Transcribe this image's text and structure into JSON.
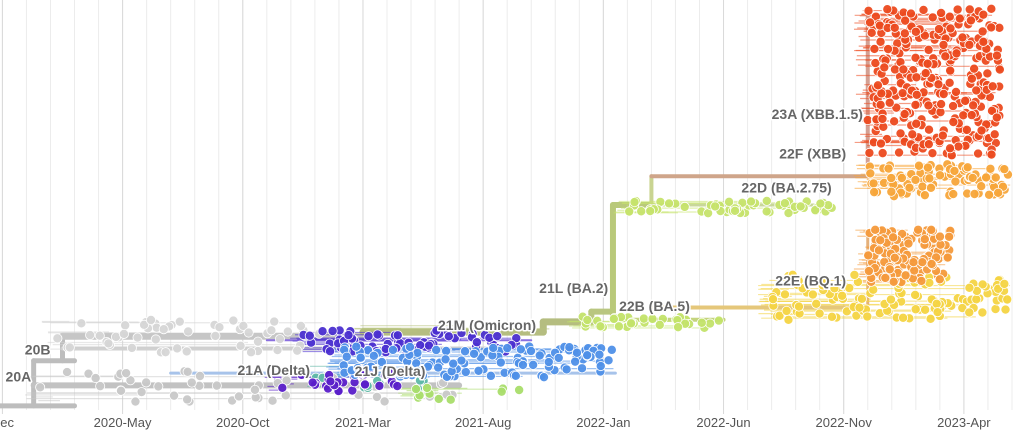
{
  "chart_data": {
    "type": "scatter",
    "title": "",
    "xlabel": "",
    "ylabel": "",
    "grid": true,
    "x_ticks": [
      "Dec",
      "2020-May",
      "2020-Oct",
      "2021-Mar",
      "2021-Aug",
      "2022-Jan",
      "2022-Jun",
      "2022-Nov",
      "2023-Apr"
    ],
    "x_tick_months": [
      -1,
      4,
      9,
      14,
      19,
      24,
      29,
      34,
      39
    ],
    "xlim_months": [
      -1.1,
      41.5
    ],
    "ylim": [
      0,
      100
    ],
    "clades": [
      {
        "label": "20A",
        "color": "#c8c8c8",
        "x_range": [
          0.5,
          18
        ],
        "y_range": [
          2,
          10
        ],
        "count": 50
      },
      {
        "label": "20B",
        "color": "#d6d6d6",
        "x_range": [
          1.2,
          12.5
        ],
        "y_range": [
          14,
          22
        ],
        "count": 55
      },
      {
        "label": "21A (Delta)",
        "color": "#5fb8a6",
        "x_range": [
          12,
          17
        ],
        "y_range": [
          5,
          11
        ],
        "count": 12
      },
      {
        "label": "",
        "color": "#4b2fd0",
        "x_range": [
          11.5,
          20.5
        ],
        "y_range": [
          14,
          19.5
        ],
        "count": 70
      },
      {
        "label": "",
        "color": "#5a1fc9",
        "x_range": [
          10.5,
          15.5
        ],
        "y_range": [
          4.5,
          9
        ],
        "count": 30
      },
      {
        "label": "21J (Delta)",
        "color": "#4f90e8",
        "x_range": [
          13,
          24.5
        ],
        "y_range": [
          8,
          15.5
        ],
        "count": 130
      },
      {
        "label": "",
        "color": "#a9dd6a",
        "x_range": [
          16,
          20.5
        ],
        "y_range": [
          2.5,
          5.5
        ],
        "count": 10
      },
      {
        "label": "21M (Omicron)",
        "color": "#b7c37d",
        "x_range": [
          14,
          22
        ],
        "y_range": [
          17,
          21
        ],
        "count": 0
      },
      {
        "label": "21L (BA.2)",
        "color": "#c3e36a",
        "x_range": [
          23,
          29
        ],
        "y_range": [
          20,
          23
        ],
        "count": 35
      },
      {
        "label": "22D (BA.2.75)",
        "color": "#c6e36b",
        "x_range": [
          25,
          33.5
        ],
        "y_range": [
          48,
          51
        ],
        "count": 60
      },
      {
        "label": "22B (BA.5)",
        "color": "#f4d443",
        "x_range": [
          31,
          41
        ],
        "y_range": [
          22,
          33
        ],
        "count": 130
      },
      {
        "label": "22E (BQ.1)",
        "color": "#f49a3c",
        "x_range": [
          35,
          38.5
        ],
        "y_range": [
          31,
          44
        ],
        "count": 140
      },
      {
        "label": "22F (XBB)",
        "color": "#f7a53a",
        "x_range": [
          35,
          41
        ],
        "y_range": [
          52,
          60
        ],
        "count": 90
      },
      {
        "label": "23A (XBB.1.5)",
        "color": "#ec4a1f",
        "x_range": [
          35,
          40.5
        ],
        "y_range": [
          62,
          98
        ],
        "count": 320
      }
    ]
  }
}
